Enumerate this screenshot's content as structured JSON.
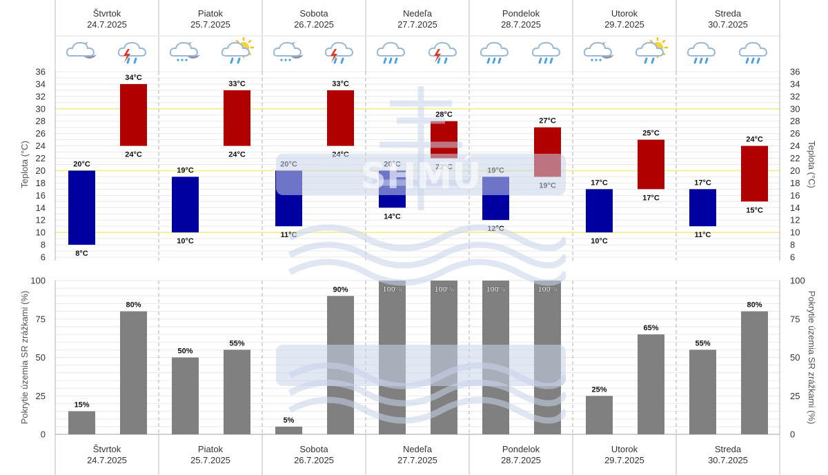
{
  "days": [
    {
      "name": "Štvrtok",
      "date": "24.7.2025",
      "icons": [
        "night-partly-cloudy-icon",
        "thunderstorm-rain-icon"
      ]
    },
    {
      "name": "Piatok",
      "date": "25.7.2025",
      "icons": [
        "night-cloudy-light-rain-icon",
        "sun-cloud-rain-icon"
      ]
    },
    {
      "name": "Sobota",
      "date": "26.7.2025",
      "icons": [
        "night-cloudy-light-rain-icon",
        "thunderstorm-rain-icon"
      ]
    },
    {
      "name": "Nedeľa",
      "date": "27.7.2025",
      "icons": [
        "cloud-rain-icon",
        "thunderstorm-rain-icon"
      ]
    },
    {
      "name": "Pondelok",
      "date": "28.7.2025",
      "icons": [
        "cloud-rain-icon",
        "cloud-rain-icon"
      ]
    },
    {
      "name": "Utorok",
      "date": "29.7.2025",
      "icons": [
        "night-cloudy-light-rain-icon",
        "sun-cloud-rain-icon"
      ]
    },
    {
      "name": "Streda",
      "date": "30.7.2025",
      "icons": [
        "cloud-rain-icon",
        "cloud-rain-icon"
      ]
    }
  ],
  "chart_data": [
    {
      "type": "bar",
      "ylabel": "Teplota (°C)",
      "ylim": [
        6,
        36
      ],
      "yticks": [
        6,
        8,
        10,
        12,
        14,
        16,
        18,
        20,
        22,
        24,
        26,
        28,
        30,
        32,
        34,
        36
      ],
      "reference_lines": [
        10,
        20,
        30
      ],
      "unit": "°C",
      "series": [
        {
          "values_min": [
            8,
            10,
            11,
            14,
            12,
            10,
            11
          ],
          "values_max": [
            20,
            19,
            20,
            20,
            19,
            17,
            17
          ],
          "color": "#0000a0"
        },
        {
          "values_min": [
            24,
            24,
            24,
            22,
            19,
            17,
            15
          ],
          "values_max": [
            34,
            33,
            33,
            28,
            27,
            25,
            24
          ],
          "color": "#b00000"
        }
      ]
    },
    {
      "type": "bar",
      "ylabel": "Pokrytie územia SR zrážkami (%)",
      "ylim": [
        0,
        100
      ],
      "yticks": [
        0,
        25,
        50,
        75,
        100
      ],
      "unit": "%",
      "series": [
        {
          "values": [
            15,
            50,
            5,
            100,
            100,
            25,
            55
          ],
          "color": "#808080"
        },
        {
          "values": [
            80,
            55,
            90,
            100,
            100,
            65,
            80
          ],
          "color": "#808080"
        }
      ]
    }
  ],
  "watermark": "SHMÚ"
}
